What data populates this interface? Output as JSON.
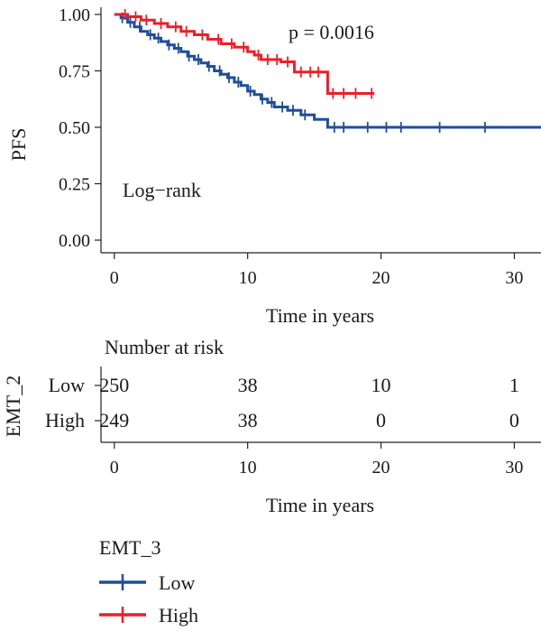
{
  "chart_data": {
    "type": "line",
    "ylabel": "PFS",
    "xlabel": "Time in years",
    "xlim": [
      -1,
      32
    ],
    "ylim": [
      0,
      1
    ],
    "x_ticks": [
      0,
      10,
      20,
      30
    ],
    "y_ticks": [
      "0.00",
      "0.25",
      "0.50",
      "0.75",
      "1.00"
    ],
    "annotations": {
      "pvalue": "p = 0.0016",
      "test": "Log−rank"
    },
    "series": [
      {
        "name": "Low",
        "color": "#1f4e99",
        "step_points": [
          [
            0,
            1.0
          ],
          [
            0.5,
            0.985
          ],
          [
            1.0,
            0.965
          ],
          [
            1.5,
            0.945
          ],
          [
            2.0,
            0.925
          ],
          [
            2.5,
            0.91
          ],
          [
            3.0,
            0.895
          ],
          [
            3.5,
            0.88
          ],
          [
            4.0,
            0.865
          ],
          [
            4.5,
            0.85
          ],
          [
            5.0,
            0.835
          ],
          [
            5.5,
            0.815
          ],
          [
            6.0,
            0.8
          ],
          [
            6.5,
            0.785
          ],
          [
            7.0,
            0.77
          ],
          [
            7.5,
            0.75
          ],
          [
            8.0,
            0.735
          ],
          [
            8.5,
            0.72
          ],
          [
            9.0,
            0.7
          ],
          [
            9.5,
            0.685
          ],
          [
            10.0,
            0.66
          ],
          [
            10.5,
            0.645
          ],
          [
            11.0,
            0.625
          ],
          [
            11.5,
            0.61
          ],
          [
            12.0,
            0.59
          ],
          [
            13.0,
            0.575
          ],
          [
            14.0,
            0.555
          ],
          [
            15.0,
            0.535
          ],
          [
            16.0,
            0.5
          ],
          [
            32.0,
            0.5
          ]
        ],
        "censor_x": [
          0.6,
          1.2,
          1.9,
          2.7,
          3.3,
          4.1,
          4.8,
          5.6,
          6.3,
          7.1,
          7.9,
          8.6,
          9.3,
          10.2,
          11.1,
          11.8,
          12.6,
          13.4,
          14.3,
          16.5,
          17.2,
          19.0,
          20.4,
          21.5,
          24.4,
          27.8
        ]
      },
      {
        "name": "High",
        "color": "#e8202a",
        "step_points": [
          [
            0,
            1.0
          ],
          [
            1.0,
            0.99
          ],
          [
            2.0,
            0.975
          ],
          [
            3.0,
            0.96
          ],
          [
            4.0,
            0.945
          ],
          [
            5.0,
            0.925
          ],
          [
            6.0,
            0.91
          ],
          [
            7.0,
            0.89
          ],
          [
            8.0,
            0.87
          ],
          [
            9.0,
            0.855
          ],
          [
            10.0,
            0.835
          ],
          [
            10.5,
            0.82
          ],
          [
            11.0,
            0.8
          ],
          [
            12.5,
            0.79
          ],
          [
            13.5,
            0.745
          ],
          [
            15.0,
            0.745
          ],
          [
            16.0,
            0.65
          ],
          [
            19.5,
            0.65
          ]
        ],
        "censor_x": [
          0.8,
          1.6,
          2.4,
          3.5,
          4.6,
          5.4,
          6.6,
          7.8,
          8.8,
          9.7,
          10.8,
          11.5,
          12.2,
          13.0,
          14.0,
          14.7,
          15.3,
          16.4,
          17.2,
          18.1,
          19.3
        ]
      }
    ]
  },
  "risk_table": {
    "title": "Number at risk",
    "group_label": "EMT_2",
    "x_ticks": [
      0,
      10,
      20,
      30
    ],
    "xlabel": "Time in years",
    "rows": [
      {
        "label": "Low",
        "values": [
          "250",
          "38",
          "10",
          "1"
        ]
      },
      {
        "label": "High",
        "values": [
          "249",
          "38",
          "0",
          "0"
        ]
      }
    ]
  },
  "legend": {
    "title": "EMT_3",
    "items": [
      {
        "label": "Low",
        "color": "#1f4e99"
      },
      {
        "label": "High",
        "color": "#e8202a"
      }
    ]
  }
}
